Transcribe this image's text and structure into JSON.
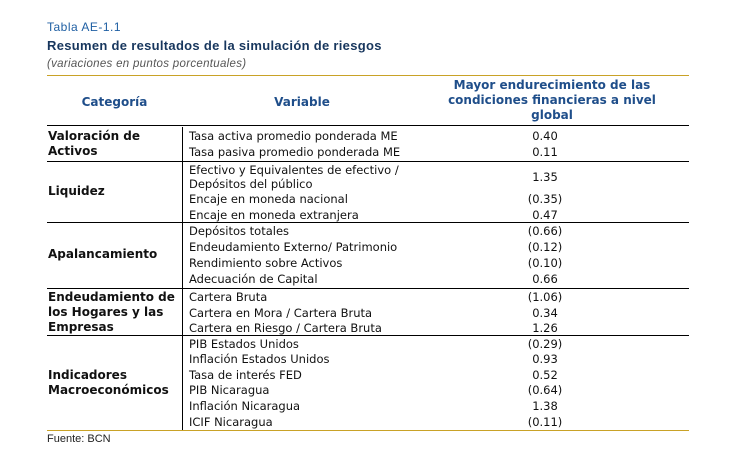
{
  "table_label": "Tabla AE-1.1",
  "table_title": "Resumen de resultados de la simulación de riesgos",
  "table_subtitle": "(variaciones en puntos porcentuales)",
  "headers": {
    "categoria": "Categoría",
    "variable": "Variable",
    "scenario": "Mayor endurecimiento de las condiciones financieras a nivel global"
  },
  "groups": [
    {
      "category": "Valoración de Activos",
      "rows": [
        {
          "variable": "Tasa activa promedio ponderada ME",
          "value": "0.40"
        },
        {
          "variable": "Tasa pasiva promedio ponderada ME",
          "value": "0.11"
        }
      ]
    },
    {
      "category": "Liquidez",
      "rows": [
        {
          "variable": "Efectivo y Equivalentes de efectivo / Depósitos del público",
          "value": "1.35"
        },
        {
          "variable": "Encaje en moneda nacional",
          "value": "(0.35)"
        },
        {
          "variable": "Encaje en moneda extranjera",
          "value": "0.47"
        }
      ]
    },
    {
      "category": "Apalancamiento",
      "rows": [
        {
          "variable": "Depósitos totales",
          "value": "(0.66)"
        },
        {
          "variable": "Endeudamiento Externo/ Patrimonio",
          "value": "(0.12)"
        },
        {
          "variable": "Rendimiento sobre Activos",
          "value": "(0.10)"
        },
        {
          "variable": "Adecuación de Capital",
          "value": "0.66"
        }
      ]
    },
    {
      "category": "Endeudamiento de los Hogares y las Empresas",
      "rows": [
        {
          "variable": "Cartera Bruta",
          "value": "(1.06)"
        },
        {
          "variable": "Cartera en Mora / Cartera Bruta",
          "value": "0.34"
        },
        {
          "variable": "Cartera en Riesgo / Cartera Bruta",
          "value": "1.26"
        }
      ]
    },
    {
      "category": "Indicadores Macroeconómicos",
      "rows": [
        {
          "variable": "PIB Estados Unidos",
          "value": "(0.29)"
        },
        {
          "variable": "Inflación Estados Unidos",
          "value": "0.93"
        },
        {
          "variable": "Tasa de interés FED",
          "value": "0.52"
        },
        {
          "variable": "PIB Nicaragua",
          "value": "(0.64)"
        },
        {
          "variable": "Inflación Nicaragua",
          "value": "1.38"
        },
        {
          "variable": "ICIF Nicaragua",
          "value": "(0.11)"
        }
      ]
    }
  ],
  "footer": "Fuente: BCN"
}
